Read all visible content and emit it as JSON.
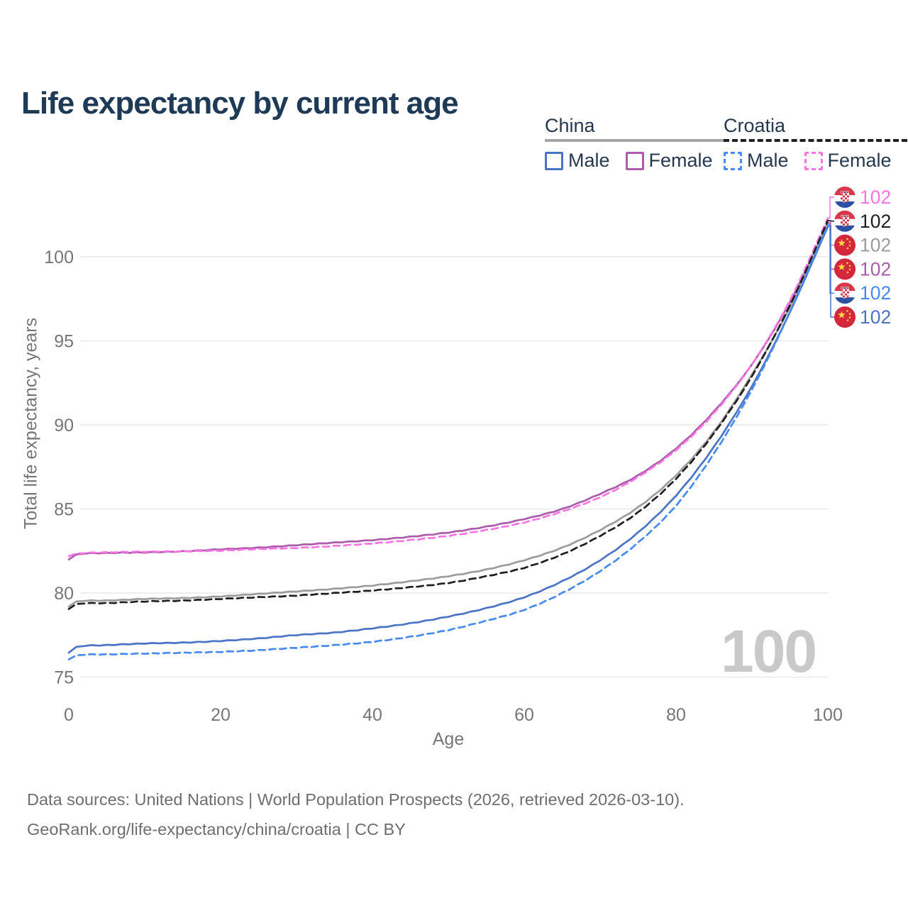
{
  "title": "Life expectancy by current age",
  "watermark": "100",
  "legend": {
    "groups": [
      {
        "label": "China",
        "underline": "solid",
        "underline_color": "#a6a6a6",
        "items": [
          {
            "label": "Male",
            "color": "#4a74c4",
            "dash": false
          },
          {
            "label": "Female",
            "color": "#ab5cab",
            "dash": false
          }
        ]
      },
      {
        "label": "Croatia",
        "underline": "dashed",
        "underline_color": "#1f1f1f",
        "items": [
          {
            "label": "Male",
            "color": "#478bf0",
            "dash": true
          },
          {
            "label": "Female",
            "color": "#fc74e4",
            "dash": true
          }
        ]
      }
    ]
  },
  "end_labels": [
    {
      "country": "croatia",
      "series": "Croatia Female",
      "value": "102",
      "color": "#fc74e4"
    },
    {
      "country": "croatia",
      "series": "Croatia",
      "value": "102",
      "color": "#1f1f1f"
    },
    {
      "country": "china",
      "series": "China",
      "value": "102",
      "color": "#9c9c9c"
    },
    {
      "country": "china",
      "series": "China Female",
      "value": "102",
      "color": "#ab5cab"
    },
    {
      "country": "croatia",
      "series": "Croatia Male",
      "value": "102",
      "color": "#478bf0"
    },
    {
      "country": "china",
      "series": "China Male",
      "value": "102",
      "color": "#4a74c4"
    }
  ],
  "footer": {
    "line1": "Data sources: United Nations | World Population Prospects (2026, retrieved 2026-03-10).",
    "line2": "GeoRank.org/life-expectancy/china/croatia | CC BY"
  },
  "chart_data": {
    "type": "line",
    "title": "Life expectancy by current age",
    "xlabel": "Age",
    "ylabel": "Total life expectancy, years",
    "xlim": [
      0,
      100
    ],
    "ylim": [
      74.5,
      103.5
    ],
    "xticks": [
      0,
      20,
      40,
      60,
      80,
      100
    ],
    "yticks": [
      75,
      80,
      85,
      90,
      95,
      100
    ],
    "grid": "horizontal",
    "legend_position": "top-right",
    "x": [
      0,
      1,
      5,
      10,
      15,
      20,
      25,
      30,
      35,
      40,
      45,
      50,
      55,
      60,
      65,
      70,
      75,
      80,
      85,
      90,
      95,
      100
    ],
    "series": [
      {
        "name": "China Male",
        "color": "#4a74c4",
        "dash": false,
        "values": [
          76.45,
          76.8,
          76.9,
          77.0,
          77.05,
          77.15,
          77.3,
          77.5,
          77.65,
          77.9,
          78.2,
          78.6,
          79.1,
          79.75,
          80.7,
          81.95,
          83.6,
          85.8,
          88.7,
          92.3,
          96.7,
          101.8
        ]
      },
      {
        "name": "China Female",
        "color": "#ab5cab",
        "dash": false,
        "values": [
          82.0,
          82.3,
          82.38,
          82.42,
          82.48,
          82.6,
          82.7,
          82.85,
          83.0,
          83.15,
          83.35,
          83.6,
          83.95,
          84.4,
          85.0,
          85.9,
          87.0,
          88.6,
          90.8,
          93.6,
          97.3,
          102.0
        ]
      },
      {
        "name": "China",
        "color": "#9c9c9c",
        "dash": false,
        "values": [
          79.2,
          79.5,
          79.55,
          79.65,
          79.7,
          79.8,
          79.95,
          80.1,
          80.25,
          80.45,
          80.7,
          81.0,
          81.4,
          81.95,
          82.7,
          83.75,
          85.1,
          87.0,
          89.6,
          93.0,
          97.0,
          102.05
        ]
      },
      {
        "name": "Croatia Male",
        "color": "#478bf0",
        "dash": true,
        "values": [
          76.05,
          76.3,
          76.35,
          76.4,
          76.45,
          76.5,
          76.6,
          76.75,
          76.9,
          77.1,
          77.4,
          77.8,
          78.35,
          79.0,
          80.0,
          81.3,
          83.0,
          85.2,
          88.3,
          92.1,
          96.7,
          101.9
        ]
      },
      {
        "name": "Croatia Female",
        "color": "#fc74e4",
        "dash": true,
        "values": [
          82.2,
          82.35,
          82.42,
          82.46,
          82.48,
          82.52,
          82.62,
          82.68,
          82.8,
          82.95,
          83.15,
          83.4,
          83.75,
          84.2,
          84.85,
          85.7,
          86.9,
          88.5,
          90.7,
          93.6,
          97.4,
          102.3
        ]
      },
      {
        "name": "Croatia",
        "color": "#1f1f1f",
        "dash": true,
        "values": [
          79.05,
          79.35,
          79.4,
          79.5,
          79.55,
          79.65,
          79.75,
          79.85,
          80.0,
          80.15,
          80.35,
          80.6,
          81.0,
          81.5,
          82.3,
          83.4,
          84.8,
          86.8,
          89.5,
          92.9,
          97.1,
          102.15
        ]
      }
    ]
  }
}
